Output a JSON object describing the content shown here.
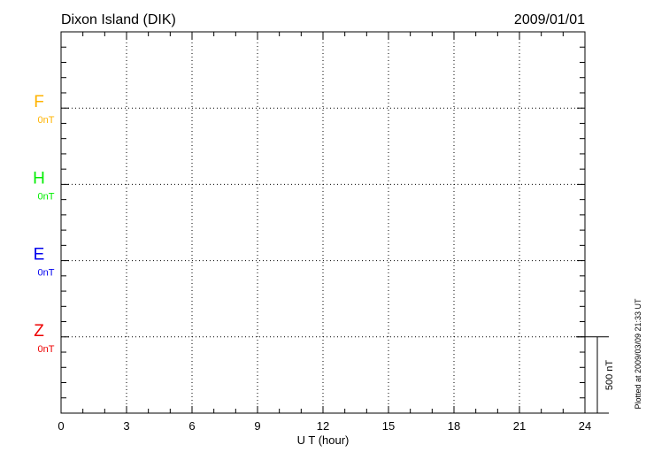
{
  "chart_data": {
    "type": "line",
    "title": "Dixon Island (DIK)",
    "date": "2009/01/01",
    "xlabel": "U T (hour)",
    "xlim": [
      0,
      24
    ],
    "xticks": [
      "0",
      "3",
      "6",
      "9",
      "12",
      "15",
      "18",
      "21",
      "24"
    ],
    "grid": true,
    "series": [
      {
        "name": "F",
        "baseline_label": "0nT",
        "color": "#ffb300",
        "values": []
      },
      {
        "name": "H",
        "baseline_label": "0nT",
        "color": "#00ee00",
        "values": []
      },
      {
        "name": "E",
        "baseline_label": "0nT",
        "color": "#0000ee",
        "values": []
      },
      {
        "name": "Z",
        "baseline_label": "0nT",
        "color": "#ee0000",
        "values": []
      }
    ],
    "scale_bar_label": "500 nT",
    "plotted_note": "Plotted at 2009/03/09 21:33 UT"
  }
}
